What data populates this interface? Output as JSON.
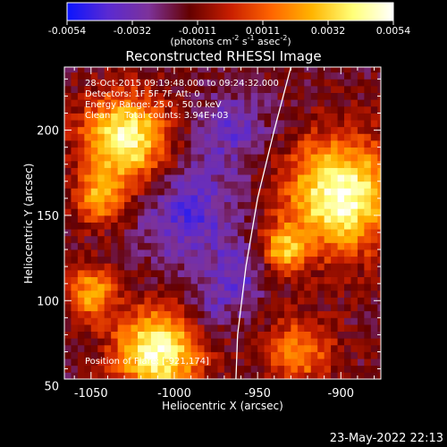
{
  "chart_data": {
    "type": "heatmap",
    "title": "Reconstructed RHESSI Image",
    "xlabel": "Heliocentric X (arcsec)",
    "ylabel": "Heliocentric Y (arcsec)",
    "x_ticks": [
      "-1050",
      "-1000",
      "-950",
      "-900"
    ],
    "y_ticks": [
      "50",
      "100",
      "150",
      "200"
    ],
    "x_tick_values": [
      -1050,
      -1000,
      -950,
      -900
    ],
    "y_tick_values": [
      50,
      100,
      150,
      200
    ],
    "xlim": [
      -1066,
      -876
    ],
    "ylim": [
      54,
      237
    ],
    "colorbar": {
      "ticks": [
        "-0.0054",
        "-0.0032",
        "-0.0011",
        "0.0011",
        "0.0032",
        "0.0054"
      ],
      "label_text": "(photons cm",
      "label_exp1": "-2",
      "label_mid": " s",
      "label_exp2": "-1",
      "label_tail": " asec",
      "label_exp3": "-2",
      "label_end": ")",
      "colors": [
        "#0a14ff",
        "#5a2ad2",
        "#7d329a",
        "#640000",
        "#c81e00",
        "#ff6400",
        "#ffb400",
        "#ffff78",
        "#ffffff"
      ]
    },
    "annotations": [
      "28-Oct-2015 09:19:48.000 to 09:24:32.000",
      "Detectors: 1F 5F 7F  Att: 0",
      "Energy Range: 25.0 - 50.0 keV",
      "Clean     Total counts: 3.94E+03"
    ],
    "position_label": "Position of Flare: [-921,174]",
    "limb": [
      [
        -930,
        237
      ],
      [
        -940,
        200
      ],
      [
        -950,
        160
      ],
      [
        -957,
        120
      ],
      [
        -962,
        80
      ],
      [
        -963,
        54
      ]
    ],
    "sources": [
      {
        "x": -1030,
        "y": 195,
        "radius": 25,
        "amp": 0.95
      },
      {
        "x": -1045,
        "y": 160,
        "radius": 15,
        "amp": 0.55
      },
      {
        "x": -900,
        "y": 162,
        "radius": 32,
        "amp": 1.0
      },
      {
        "x": -935,
        "y": 130,
        "radius": 14,
        "amp": 0.6
      },
      {
        "x": -1010,
        "y": 70,
        "radius": 25,
        "amp": 0.95
      },
      {
        "x": -1050,
        "y": 105,
        "radius": 15,
        "amp": 0.6
      },
      {
        "x": -925,
        "y": 70,
        "radius": 20,
        "amp": 0.5
      }
    ],
    "sinks": [
      {
        "x": -990,
        "y": 150,
        "radius": 30,
        "amp": 0.5
      },
      {
        "x": -965,
        "y": 200,
        "radius": 22,
        "amp": 0.4
      },
      {
        "x": -960,
        "y": 115,
        "radius": 18,
        "amp": 0.4
      },
      {
        "x": -980,
        "y": 95,
        "radius": 15,
        "amp": 0.3
      }
    ],
    "grid": false,
    "pixel_size_arcsec": 4
  },
  "footer": {
    "date": "23-May-2022 22:13"
  }
}
